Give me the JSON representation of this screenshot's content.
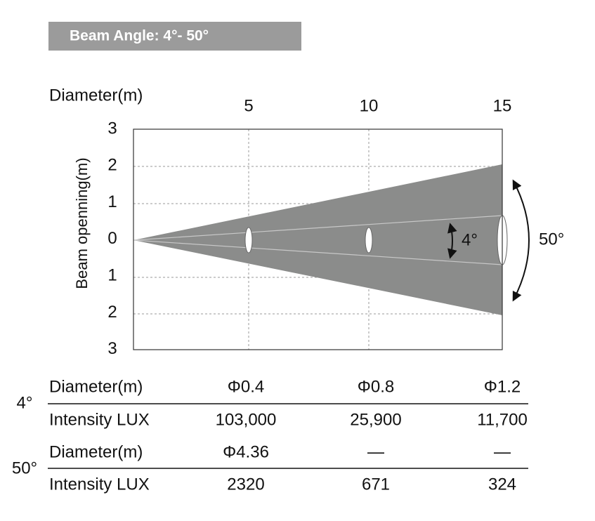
{
  "header": {
    "title": "Beam Angle: 4°- 50°"
  },
  "diagram": {
    "x_axis_label": "Diameter(m)",
    "y_axis_label": "Beam openning(m)",
    "x_tick_labels": [
      "5",
      "10",
      "15"
    ],
    "y_tick_labels": [
      "3",
      "2",
      "1",
      "0",
      "1",
      "2",
      "3"
    ],
    "narrow_angle_label": "4°",
    "wide_angle_label": "50°"
  },
  "table": {
    "groups": [
      {
        "label": "4°",
        "rows": [
          [
            "Diameter(m)",
            "Φ0.4",
            "Φ0.8",
            "Φ1.2"
          ],
          [
            "Intensity LUX",
            "103,000",
            "25,900",
            "11,700"
          ]
        ]
      },
      {
        "label": "50°",
        "rows": [
          [
            "Diameter(m)",
            "Φ4.36",
            "—",
            "—"
          ],
          [
            "Intensity LUX",
            "2320",
            "671",
            "324"
          ]
        ]
      }
    ]
  }
}
